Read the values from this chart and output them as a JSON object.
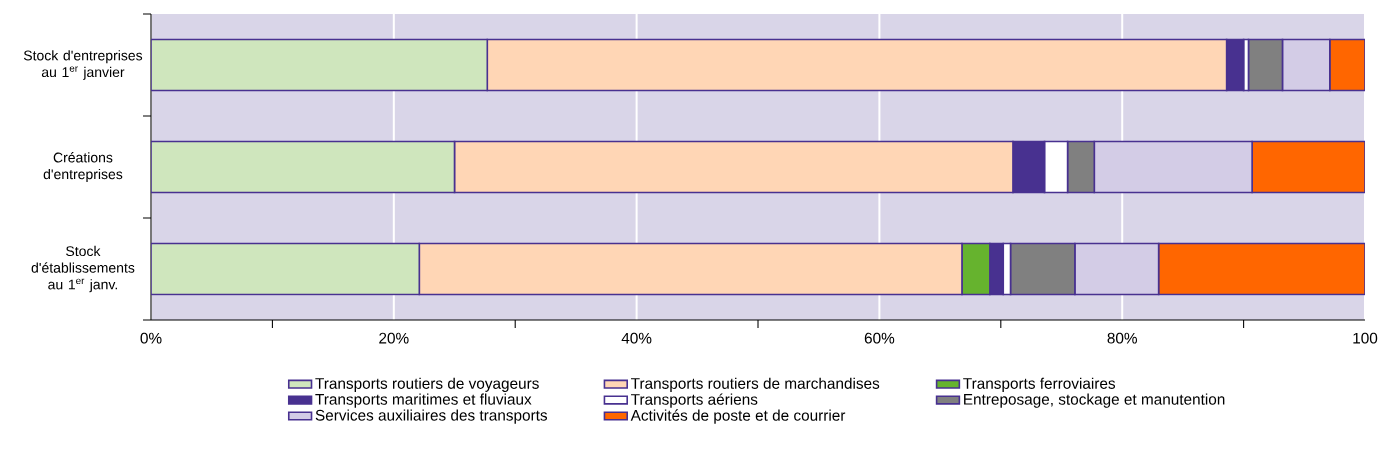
{
  "chart_data": {
    "type": "bar",
    "orientation": "horizontal",
    "stacked": true,
    "categories": [
      "Stock d'entreprises au 1$^{er}$ janvier",
      "Créations d'entreprises",
      "Stock d'établissements au 1$^{er}$ janv."
    ],
    "series": [
      {
        "name": "Transports routiers de voyageurs",
        "color": "#cfe6bd",
        "values": [
          27.7,
          25.0,
          22.1
        ]
      },
      {
        "name": "Transports routiers de marchandises",
        "color": "#ffd6b5",
        "values": [
          60.9,
          46.0,
          44.7
        ]
      },
      {
        "name": "Transports ferroviaires",
        "color": "#66b32e",
        "values": [
          0,
          0,
          2.3
        ]
      },
      {
        "name": "Transports maritimes et fluviaux",
        "color": "#483190",
        "values": [
          1.4,
          2.6,
          1.1
        ]
      },
      {
        "name": "Transports aériens",
        "color": "#ffffff",
        "values": [
          0.4,
          1.9,
          0.6
        ]
      },
      {
        "name": "Entreposage, stockage et manutention",
        "color": "#808080",
        "values": [
          2.8,
          2.2,
          5.3
        ]
      },
      {
        "name": "Services auxiliaires des transports",
        "color": "#d3cce6",
        "values": [
          3.9,
          13.0,
          6.9
        ]
      },
      {
        "name": "Activités de poste et de courrier",
        "color": "#ff6600",
        "values": [
          2.9,
          9.3,
          17.0
        ]
      }
    ],
    "xlim": [
      0,
      100
    ],
    "xticks": [
      {
        "value": 0,
        "label": "0%"
      },
      {
        "value": 10,
        "label": null
      },
      {
        "value": 20,
        "label": "20%"
      },
      {
        "value": 30,
        "label": null
      },
      {
        "value": 40,
        "label": "40%"
      },
      {
        "value": 50,
        "label": null
      },
      {
        "value": 60,
        "label": "60%"
      },
      {
        "value": 70,
        "label": null
      },
      {
        "value": 80,
        "label": "80%"
      },
      {
        "value": 90,
        "label": null
      },
      {
        "value": 100,
        "label": "100"
      }
    ],
    "grid": "x",
    "legend": "bottom"
  }
}
